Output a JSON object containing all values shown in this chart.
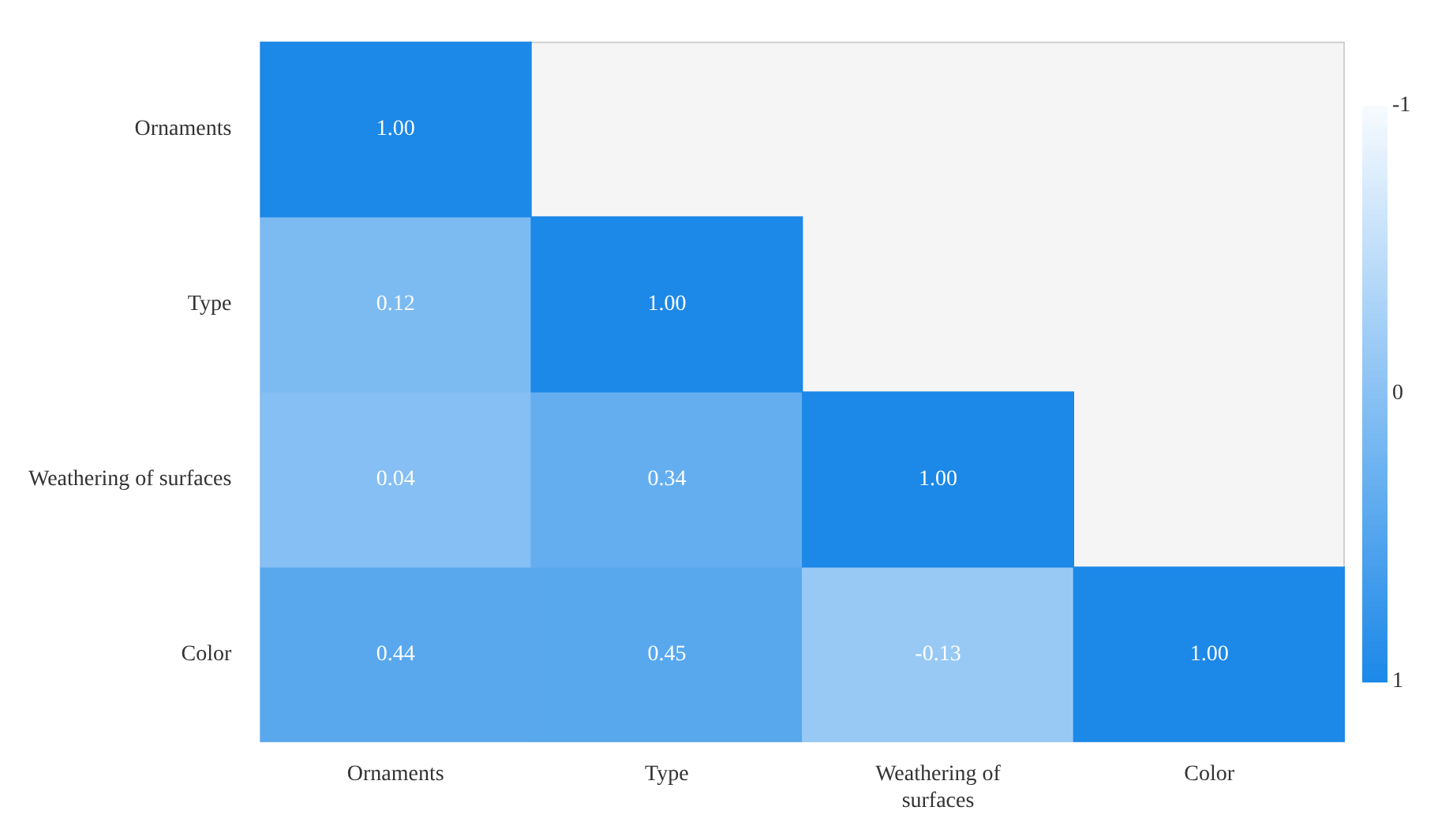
{
  "chart_data": {
    "type": "heatmap",
    "categories": [
      "Ornaments",
      "Type",
      "Weathering of surfaces",
      "Color"
    ],
    "y_categories": [
      "Ornaments",
      "Type",
      "Weathering of surfaces",
      "Color"
    ],
    "cells": [
      [
        1.0,
        null,
        null,
        null
      ],
      [
        0.12,
        1.0,
        null,
        null
      ],
      [
        0.04,
        0.34,
        1.0,
        null
      ],
      [
        0.44,
        0.45,
        -0.13,
        1.0
      ]
    ],
    "cell_labels": [
      [
        "1.00",
        null,
        null,
        null
      ],
      [
        "0.12",
        "1.00",
        null,
        null
      ],
      [
        "0.04",
        "0.34",
        "1.00",
        null
      ],
      [
        "0.44",
        "0.45",
        "-0.13",
        "1.00"
      ]
    ],
    "clim": [
      -1,
      1
    ],
    "cticks": [
      -1,
      0,
      1
    ]
  }
}
